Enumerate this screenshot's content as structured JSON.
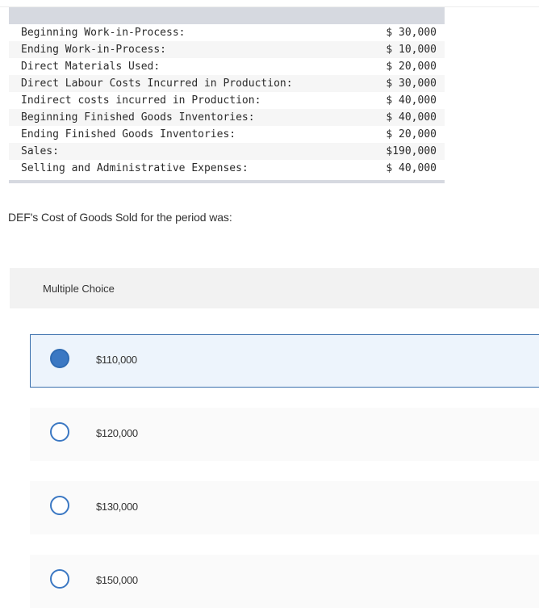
{
  "table": {
    "rows": [
      {
        "label": "Beginning Work-in-Process:",
        "value": "$ 30,000"
      },
      {
        "label": "Ending Work-in-Process:",
        "value": "$ 10,000"
      },
      {
        "label": "Direct Materials Used:",
        "value": "$ 20,000"
      },
      {
        "label": "Direct Labour Costs Incurred in Production:",
        "value": "$ 30,000"
      },
      {
        "label": "Indirect costs incurred in Production:",
        "value": "$ 40,000"
      },
      {
        "label": "Beginning Finished Goods Inventories:",
        "value": "$ 40,000"
      },
      {
        "label": "Ending Finished Goods Inventories:",
        "value": "$ 20,000"
      },
      {
        "label": "Sales:",
        "value": "$190,000"
      },
      {
        "label": "Selling and Administrative Expenses:",
        "value": "$ 40,000"
      }
    ]
  },
  "question": "DEF's Cost of Goods Sold for the period was:",
  "multiple_choice": {
    "label": "Multiple Choice",
    "options": [
      {
        "text": "$110,000",
        "selected": true
      },
      {
        "text": "$120,000",
        "selected": false
      },
      {
        "text": "$130,000",
        "selected": false
      },
      {
        "text": "$150,000",
        "selected": false
      }
    ]
  },
  "colors": {
    "accent": "#3b78c3",
    "selected_bg": "#edf4fc"
  }
}
